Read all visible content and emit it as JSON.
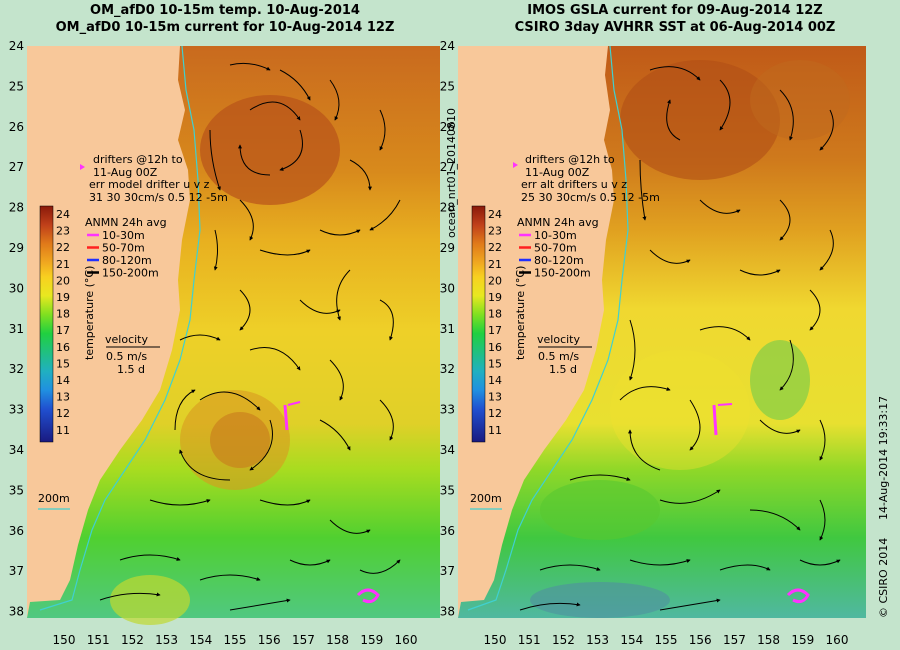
{
  "left_panel": {
    "title_line1": "OM_afD0 10-15m temp. 10-Aug-2014",
    "title_line2": "OM_afD0 10-15m current for 10-Aug-2014 12Z",
    "drifters_line1": "drifters @12h to",
    "drifters_line2": "11-Aug 00Z",
    "drifters_line3": "err model drifter u v z",
    "drifters_line4": "31  30    30cm/s  0.5 12   -5m",
    "depth_contour_label": "200m"
  },
  "right_panel": {
    "title_line1": "IMOS GSLA current for 09-Aug-2014 12Z",
    "title_line2": "CSIRO 3day AVHRR SST at 06-Aug-2014 00Z",
    "drifters_line1": "drifters @12h to",
    "drifters_line2": "11-Aug 00Z",
    "drifters_line3": "err alt drifters u v z",
    "drifters_line4": "25 30  30cm/s  0.5 12   -5m",
    "depth_contour_label": "200m",
    "side_label": "ocean_nrt01_20140810"
  },
  "legend": {
    "anmn_title": "ANMN 24h avg",
    "anmn_items": [
      {
        "label": "10-30m",
        "color": "#ff33ff"
      },
      {
        "label": "50-70m",
        "color": "#ff2020"
      },
      {
        "label": "80-120m",
        "color": "#2030ff"
      },
      {
        "label": "150-200m",
        "color": "#000000"
      }
    ],
    "velocity_title": "velocity",
    "velocity_scale": "0.5 m/s",
    "velocity_time": "1.5 d",
    "colorbar_label": "temperature (°C)",
    "colorbar_ticks": [
      "24",
      "23",
      "22",
      "21",
      "20",
      "19",
      "18",
      "17",
      "16",
      "15",
      "14",
      "13",
      "12",
      "11"
    ]
  },
  "axes": {
    "lat_ticks": [
      "24",
      "25",
      "26",
      "27",
      "28",
      "29",
      "30",
      "31",
      "32",
      "33",
      "34",
      "35",
      "36",
      "37",
      "38"
    ],
    "lon_ticks": [
      "150",
      "151",
      "152",
      "153",
      "154",
      "155",
      "156",
      "157",
      "158",
      "159",
      "160"
    ]
  },
  "footer": {
    "copyright": "© CSIRO 2014",
    "timestamp": "14-Aug-2014 19:33:17"
  },
  "colors": {
    "land": "#f8c89a",
    "warm": "#c0601a",
    "mid": "#e8c020",
    "cool": "#40d020",
    "coast_contour": "#40d0d0",
    "background": "#c4e4cc"
  }
}
